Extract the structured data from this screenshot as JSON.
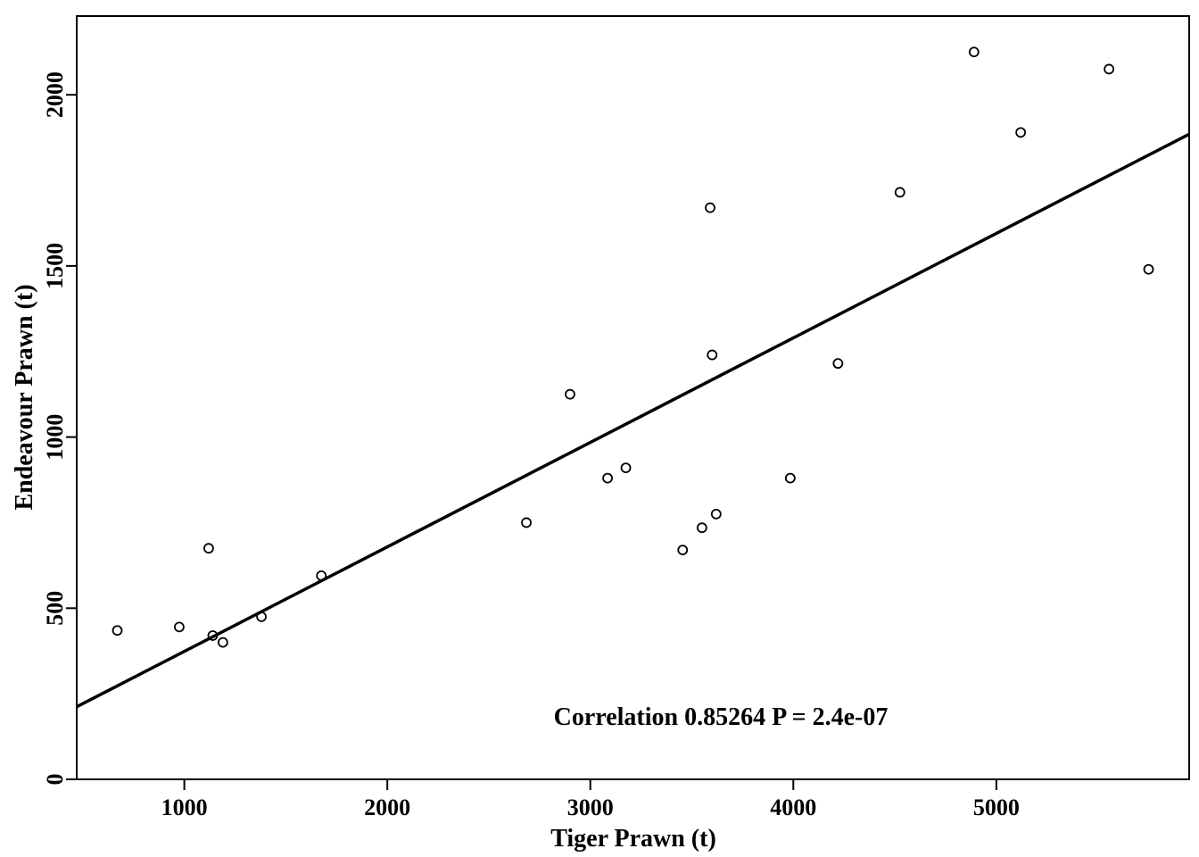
{
  "chart_data": {
    "type": "scatter",
    "xlabel": "Tiger Prawn (t)",
    "ylabel": "Endeavour Prawn (t)",
    "xlim": [
      470,
      5950
    ],
    "ylim": [
      0,
      2230
    ],
    "xticks": [
      1000,
      2000,
      3000,
      4000,
      5000
    ],
    "yticks": [
      0,
      500,
      1000,
      1500,
      2000
    ],
    "annotation": "Correlation 0.85264 P = 2.4e-07",
    "grid": false,
    "points": [
      {
        "x": 670,
        "y": 435
      },
      {
        "x": 975,
        "y": 445
      },
      {
        "x": 1120,
        "y": 675
      },
      {
        "x": 1140,
        "y": 420
      },
      {
        "x": 1190,
        "y": 400
      },
      {
        "x": 1380,
        "y": 475
      },
      {
        "x": 1675,
        "y": 595
      },
      {
        "x": 2685,
        "y": 750
      },
      {
        "x": 2900,
        "y": 1125
      },
      {
        "x": 3085,
        "y": 880
      },
      {
        "x": 3175,
        "y": 910
      },
      {
        "x": 3455,
        "y": 670
      },
      {
        "x": 3550,
        "y": 735
      },
      {
        "x": 3590,
        "y": 1670
      },
      {
        "x": 3600,
        "y": 1240
      },
      {
        "x": 3620,
        "y": 775
      },
      {
        "x": 3985,
        "y": 880
      },
      {
        "x": 4220,
        "y": 1215
      },
      {
        "x": 4525,
        "y": 1715
      },
      {
        "x": 4890,
        "y": 2125
      },
      {
        "x": 5120,
        "y": 1890
      },
      {
        "x": 5555,
        "y": 2075
      },
      {
        "x": 5750,
        "y": 1490
      }
    ],
    "fit_line": {
      "x": [
        470,
        5950
      ],
      "y": [
        212,
        1885
      ]
    }
  }
}
